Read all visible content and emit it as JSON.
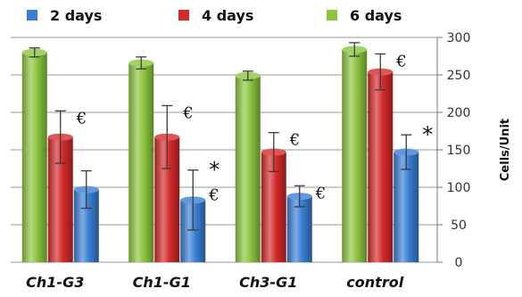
{
  "chart_data": {
    "type": "bar",
    "categories": [
      "Ch1-G3",
      "Ch1-G1",
      "Ch3-G1",
      "control"
    ],
    "series": [
      {
        "name": "6 days",
        "color": "#8cc63f",
        "values": [
          280,
          266,
          249,
          284
        ],
        "errors": [
          6,
          8,
          6,
          9
        ]
      },
      {
        "name": "4 days",
        "color": "#d42a2a",
        "values": [
          167,
          167,
          147,
          254
        ],
        "errors": [
          35,
          42,
          26,
          24
        ]
      },
      {
        "name": "2 days",
        "color": "#3a7fd5",
        "values": [
          97,
          83,
          88,
          147
        ],
        "errors": [
          25,
          40,
          14,
          23
        ]
      }
    ],
    "legend_order": [
      "2 days",
      "4 days",
      "6 days"
    ],
    "ylabel": "Cells/Unit",
    "ylim": [
      0,
      300
    ],
    "yticks": [
      0,
      50,
      100,
      150,
      200,
      250,
      300
    ],
    "y_axis_side": "right",
    "grid": true,
    "annotations": [
      {
        "category": "Ch1-G3",
        "series": "4 days",
        "text": "€"
      },
      {
        "category": "Ch1-G1",
        "series": "4 days",
        "text": "€"
      },
      {
        "category": "Ch1-G1",
        "series": "2 days",
        "text": "*"
      },
      {
        "category": "Ch1-G1",
        "series": "2 days",
        "text": "€"
      },
      {
        "category": "Ch3-G1",
        "series": "4 days",
        "text": "€"
      },
      {
        "category": "Ch3-G1",
        "series": "2 days",
        "text": "€"
      },
      {
        "category": "control",
        "series": "4 days",
        "text": "€"
      },
      {
        "category": "control",
        "series": "2 days",
        "text": "*"
      }
    ]
  }
}
